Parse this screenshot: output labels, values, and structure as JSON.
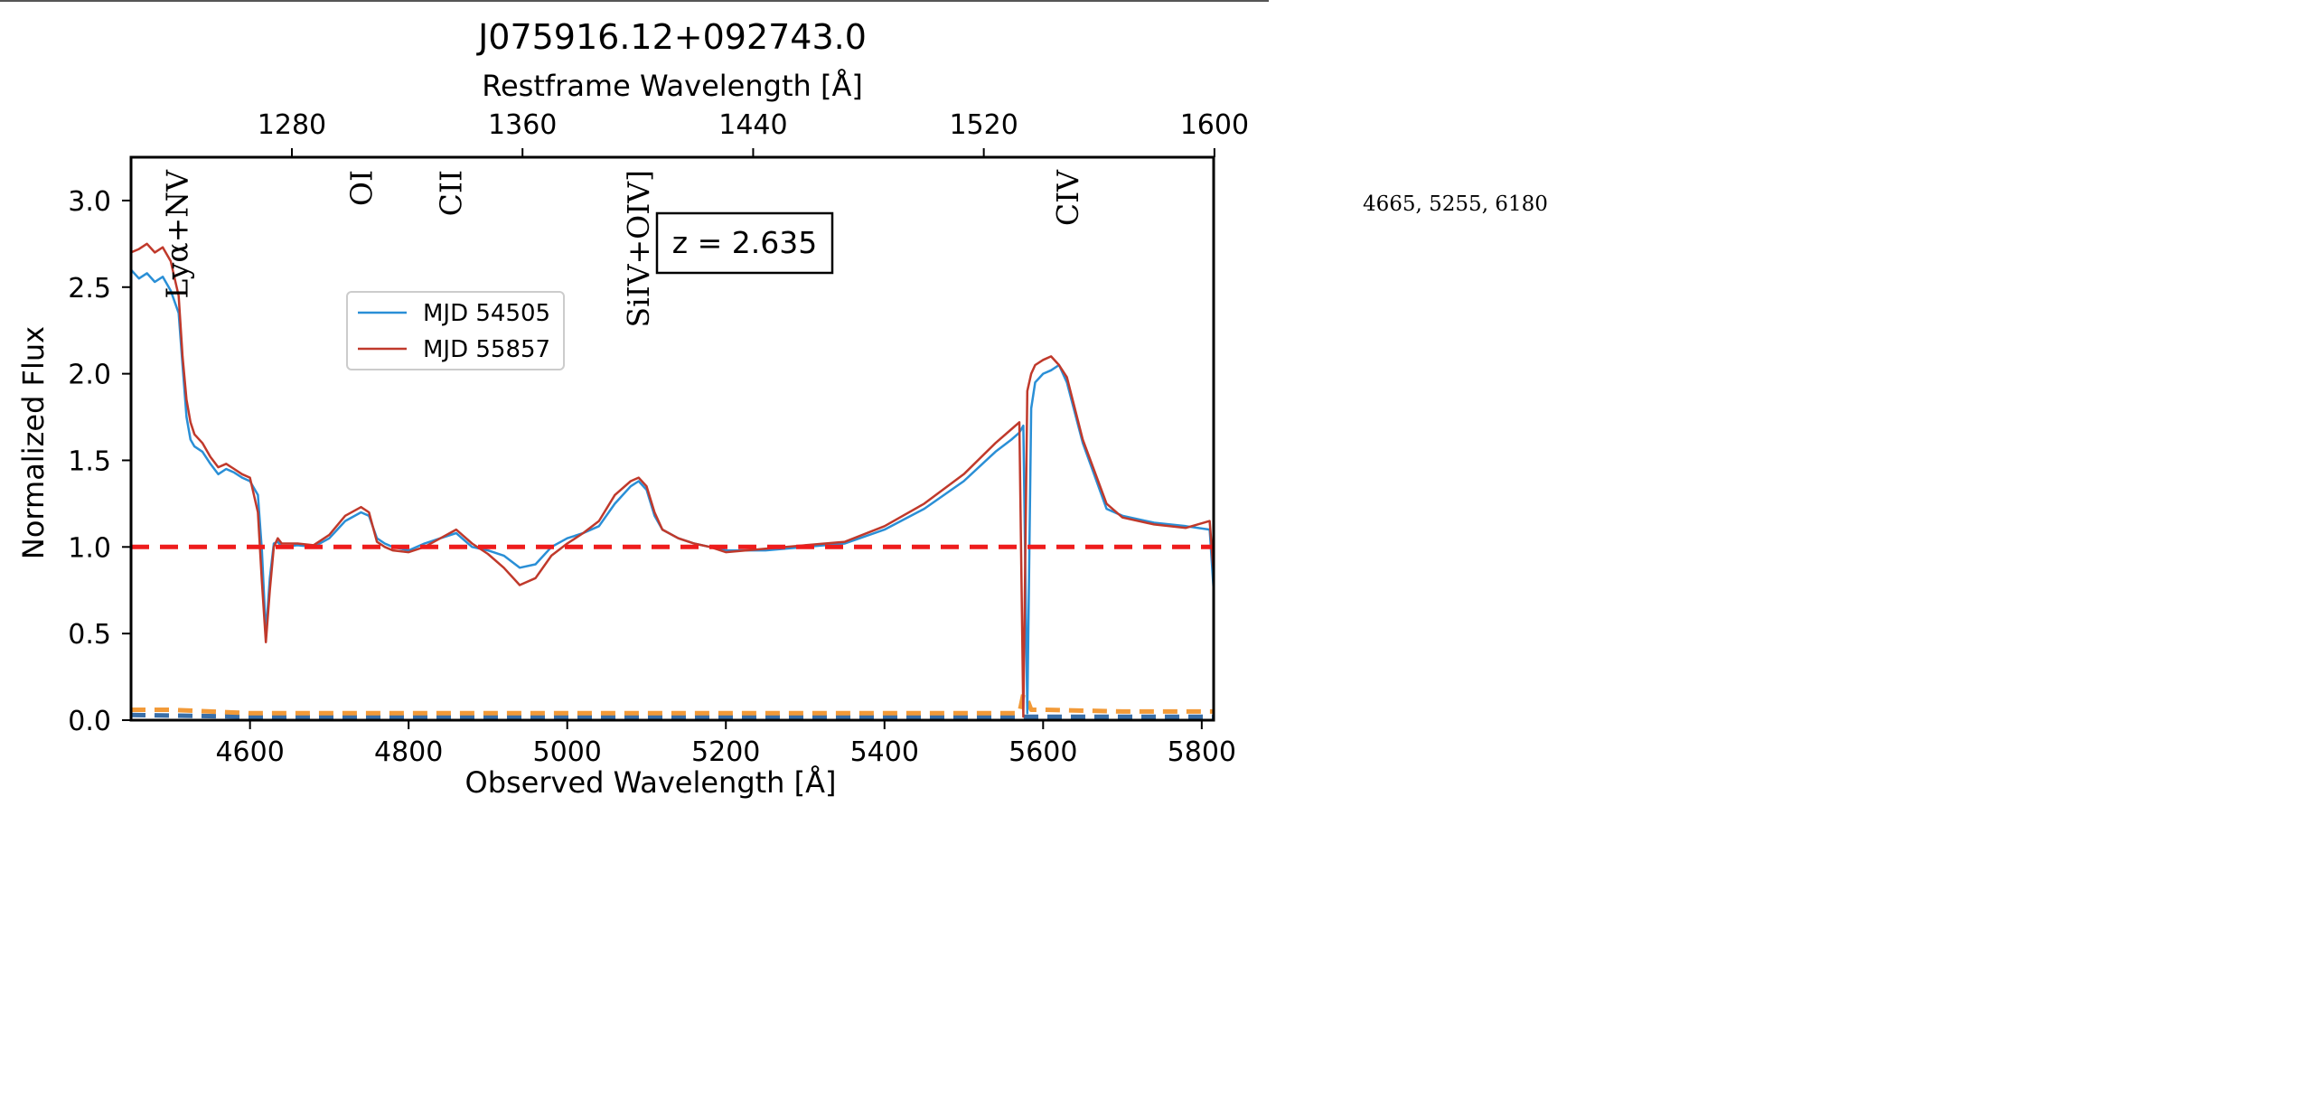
{
  "chart_data": {
    "type": "line",
    "title": "J075916.12+092743.0",
    "xlabel": "Observed Wavelength [Å]",
    "ylabel": "Normalized Flux",
    "top_xlabel": "Restframe Wavelength [Å]",
    "xlim": [
      4450,
      5815
    ],
    "ylim": [
      0.0,
      3.25
    ],
    "x_ticks": [
      4600,
      4800,
      5000,
      5200,
      5400,
      5600,
      5800
    ],
    "y_ticks": [
      0.0,
      0.5,
      1.0,
      1.5,
      2.0,
      2.5,
      3.0
    ],
    "top_ticks": [
      1280,
      1360,
      1440,
      1520,
      1600
    ],
    "redshift": 2.635,
    "annotation": "z = 2.635",
    "legend_position": "upper-left",
    "line_labels": [
      {
        "label": "Lyα+NV",
        "rest_wavelength": 1240
      },
      {
        "label": "OI",
        "rest_wavelength": 1304
      },
      {
        "label": "CII",
        "rest_wavelength": 1335
      },
      {
        "label": "SiIV+OIV]",
        "rest_wavelength": 1400
      },
      {
        "label": "CIV",
        "rest_wavelength": 1549
      }
    ],
    "reference_line": {
      "y": 1.0,
      "color": "#ee1c1c",
      "style": "dashed"
    },
    "series": [
      {
        "name": "MJD 54505",
        "color": "#2a8fd6",
        "x": [
          4450,
          4460,
          4470,
          4480,
          4490,
          4500,
          4510,
          4515,
          4520,
          4525,
          4530,
          4540,
          4550,
          4560,
          4570,
          4580,
          4590,
          4600,
          4610,
          4615,
          4620,
          4625,
          4630,
          4635,
          4640,
          4660,
          4680,
          4700,
          4720,
          4740,
          4750,
          4760,
          4770,
          4780,
          4800,
          4820,
          4840,
          4860,
          4880,
          4900,
          4920,
          4940,
          4960,
          4980,
          5000,
          5020,
          5040,
          5060,
          5080,
          5090,
          5100,
          5110,
          5120,
          5140,
          5160,
          5180,
          5200,
          5250,
          5300,
          5350,
          5400,
          5450,
          5500,
          5540,
          5560,
          5570,
          5575,
          5580,
          5585,
          5590,
          5600,
          5610,
          5620,
          5630,
          5650,
          5680,
          5700,
          5740,
          5780,
          5810,
          5815
        ],
        "values": [
          2.6,
          2.55,
          2.58,
          2.53,
          2.56,
          2.48,
          2.35,
          2.05,
          1.75,
          1.62,
          1.58,
          1.55,
          1.48,
          1.42,
          1.45,
          1.43,
          1.4,
          1.38,
          1.3,
          0.98,
          0.5,
          0.82,
          1.02,
          1.03,
          1.0,
          1.01,
          1.0,
          1.05,
          1.15,
          1.2,
          1.18,
          1.05,
          1.02,
          1.0,
          0.98,
          1.02,
          1.05,
          1.08,
          1.0,
          0.98,
          0.95,
          0.88,
          0.9,
          1.0,
          1.05,
          1.08,
          1.12,
          1.25,
          1.35,
          1.38,
          1.33,
          1.18,
          1.1,
          1.05,
          1.02,
          1.0,
          0.98,
          0.98,
          1.0,
          1.02,
          1.1,
          1.22,
          1.38,
          1.55,
          1.62,
          1.66,
          1.7,
          0.04,
          1.8,
          1.95,
          2.0,
          2.02,
          2.05,
          1.95,
          1.6,
          1.22,
          1.18,
          1.14,
          1.12,
          1.1,
          0.75
        ]
      },
      {
        "name": "MJD 55857",
        "color": "#c0392b",
        "x": [
          4450,
          4460,
          4470,
          4480,
          4490,
          4500,
          4510,
          4515,
          4520,
          4525,
          4530,
          4540,
          4550,
          4560,
          4570,
          4580,
          4590,
          4600,
          4610,
          4615,
          4620,
          4625,
          4630,
          4635,
          4640,
          4660,
          4680,
          4700,
          4720,
          4740,
          4750,
          4760,
          4770,
          4780,
          4800,
          4820,
          4840,
          4860,
          4880,
          4900,
          4920,
          4940,
          4960,
          4980,
          5000,
          5020,
          5040,
          5060,
          5080,
          5090,
          5100,
          5110,
          5120,
          5140,
          5160,
          5180,
          5200,
          5250,
          5300,
          5350,
          5400,
          5450,
          5500,
          5540,
          5560,
          5570,
          5575,
          5580,
          5585,
          5590,
          5600,
          5610,
          5620,
          5630,
          5650,
          5680,
          5700,
          5740,
          5780,
          5810,
          5815
        ],
        "values": [
          2.7,
          2.72,
          2.75,
          2.7,
          2.73,
          2.65,
          2.45,
          2.1,
          1.85,
          1.72,
          1.65,
          1.6,
          1.52,
          1.46,
          1.48,
          1.45,
          1.42,
          1.4,
          1.2,
          0.8,
          0.45,
          0.75,
          1.0,
          1.05,
          1.02,
          1.02,
          1.01,
          1.07,
          1.18,
          1.23,
          1.2,
          1.03,
          1.0,
          0.98,
          0.97,
          1.0,
          1.05,
          1.1,
          1.02,
          0.96,
          0.88,
          0.78,
          0.82,
          0.95,
          1.02,
          1.08,
          1.15,
          1.3,
          1.38,
          1.4,
          1.35,
          1.2,
          1.1,
          1.05,
          1.02,
          1.0,
          0.97,
          0.99,
          1.01,
          1.03,
          1.12,
          1.25,
          1.42,
          1.6,
          1.68,
          1.72,
          0.02,
          1.9,
          2.0,
          2.05,
          2.08,
          2.1,
          2.05,
          1.98,
          1.62,
          1.25,
          1.17,
          1.13,
          1.11,
          1.15,
          0.85
        ]
      },
      {
        "name": "",
        "color": "#f29a38",
        "style": "dashed",
        "x": [
          4450,
          4500,
          4600,
          4700,
          4800,
          5000,
          5200,
          5400,
          5570,
          5575,
          5580,
          5585,
          5600,
          5700,
          5815
        ],
        "values": [
          0.06,
          0.06,
          0.04,
          0.04,
          0.04,
          0.04,
          0.04,
          0.04,
          0.04,
          0.15,
          0.12,
          0.06,
          0.06,
          0.05,
          0.05
        ]
      },
      {
        "name": "",
        "color": "#3a6fa8",
        "style": "dashed",
        "x": [
          4450,
          4600,
          4800,
          5000,
          5200,
          5400,
          5600,
          5815
        ],
        "values": [
          0.03,
          0.02,
          0.02,
          0.02,
          0.02,
          0.02,
          0.02,
          0.02
        ]
      }
    ]
  },
  "side_note": "4665, 5255, 6180"
}
